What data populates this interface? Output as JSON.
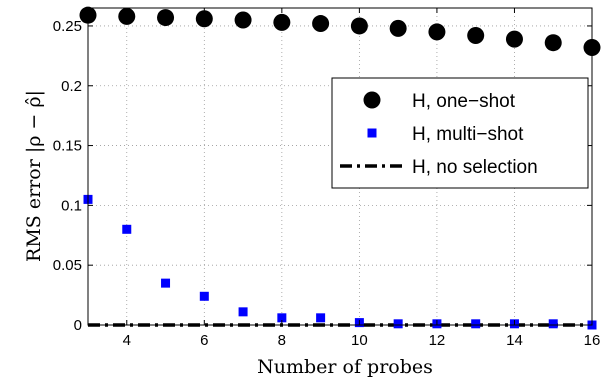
{
  "chart_data": {
    "type": "scatter",
    "xlabel": "Number of probes",
    "ylabel": "RMS error |ρ − ρ̂|",
    "xlim": [
      3,
      16
    ],
    "ylim": [
      0,
      0.265
    ],
    "xticks": [
      4,
      6,
      8,
      10,
      12,
      14,
      16
    ],
    "yticks": [
      0,
      0.05,
      0.1,
      0.15,
      0.2,
      0.25
    ],
    "ytick_labels": [
      "0",
      "0.05",
      "0.1",
      "0.15",
      "0.2",
      "0.25"
    ],
    "grid": true,
    "legend_position": "right",
    "series": [
      {
        "name": "H, one−shot",
        "marker": "circle",
        "color": "#000000",
        "x": [
          3,
          4,
          5,
          6,
          7,
          8,
          9,
          10,
          11,
          12,
          13,
          14,
          15,
          16
        ],
        "y": [
          0.259,
          0.258,
          0.257,
          0.256,
          0.255,
          0.253,
          0.252,
          0.25,
          0.248,
          0.245,
          0.242,
          0.239,
          0.236,
          0.232
        ]
      },
      {
        "name": "H, multi−shot",
        "marker": "square",
        "color": "#0000ff",
        "x": [
          3,
          4,
          5,
          6,
          7,
          8,
          9,
          10,
          11,
          12,
          13,
          14,
          15,
          16
        ],
        "y": [
          0.105,
          0.08,
          0.035,
          0.024,
          0.011,
          0.006,
          0.006,
          0.002,
          0.001,
          0.001,
          0.001,
          0.001,
          0.001,
          0.0
        ]
      },
      {
        "name": "H, no selection",
        "marker": "dash-dot-line",
        "color": "#000000",
        "x": [
          3,
          16
        ],
        "y": [
          0,
          0
        ]
      }
    ]
  }
}
